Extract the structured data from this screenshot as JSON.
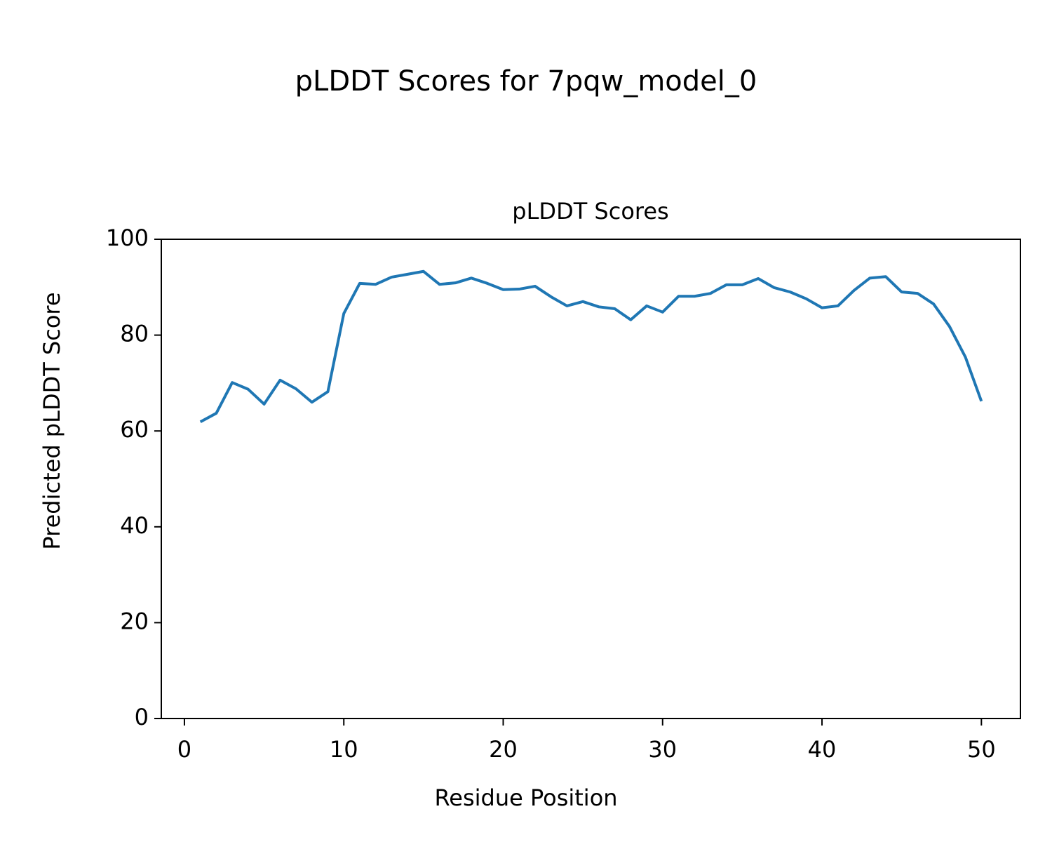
{
  "chart_data": {
    "type": "line",
    "title": "pLDDT Scores for 7pqw_model_0",
    "subtitle": "pLDDT Scores",
    "x_label": "Residue Position",
    "y_label": "Predicted pLDDT Score",
    "x": [
      1,
      2,
      3,
      4,
      5,
      6,
      7,
      8,
      9,
      10,
      11,
      12,
      13,
      14,
      15,
      16,
      17,
      18,
      19,
      20,
      21,
      22,
      23,
      24,
      25,
      26,
      27,
      28,
      29,
      30,
      31,
      32,
      33,
      34,
      35,
      36,
      37,
      38,
      39,
      40,
      41,
      42,
      43,
      44,
      45,
      46,
      47,
      48,
      49,
      50
    ],
    "series": [
      {
        "name": "pLDDT",
        "color": "#1f77b4",
        "values": [
          61.9,
          63.7,
          70.1,
          68.7,
          65.6,
          70.6,
          68.8,
          66.0,
          68.2,
          84.5,
          90.8,
          90.6,
          92.1,
          92.7,
          93.3,
          90.6,
          90.9,
          91.9,
          90.8,
          89.5,
          89.6,
          90.2,
          88.0,
          86.1,
          87.0,
          85.9,
          85.5,
          83.2,
          86.1,
          84.8,
          88.1,
          88.1,
          88.7,
          90.5,
          90.5,
          91.8,
          89.9,
          89.0,
          87.6,
          85.7,
          86.1,
          89.3,
          91.9,
          92.2,
          89.0,
          88.7,
          86.5,
          81.8,
          75.4,
          66.2
        ]
      }
    ],
    "xlim": [
      -1.45,
      52.45
    ],
    "xticks": [
      0,
      10,
      20,
      30,
      40,
      50
    ],
    "ylim": [
      0,
      100
    ],
    "yticks": [
      0,
      20,
      40,
      60,
      80,
      100
    ],
    "grid": false
  }
}
